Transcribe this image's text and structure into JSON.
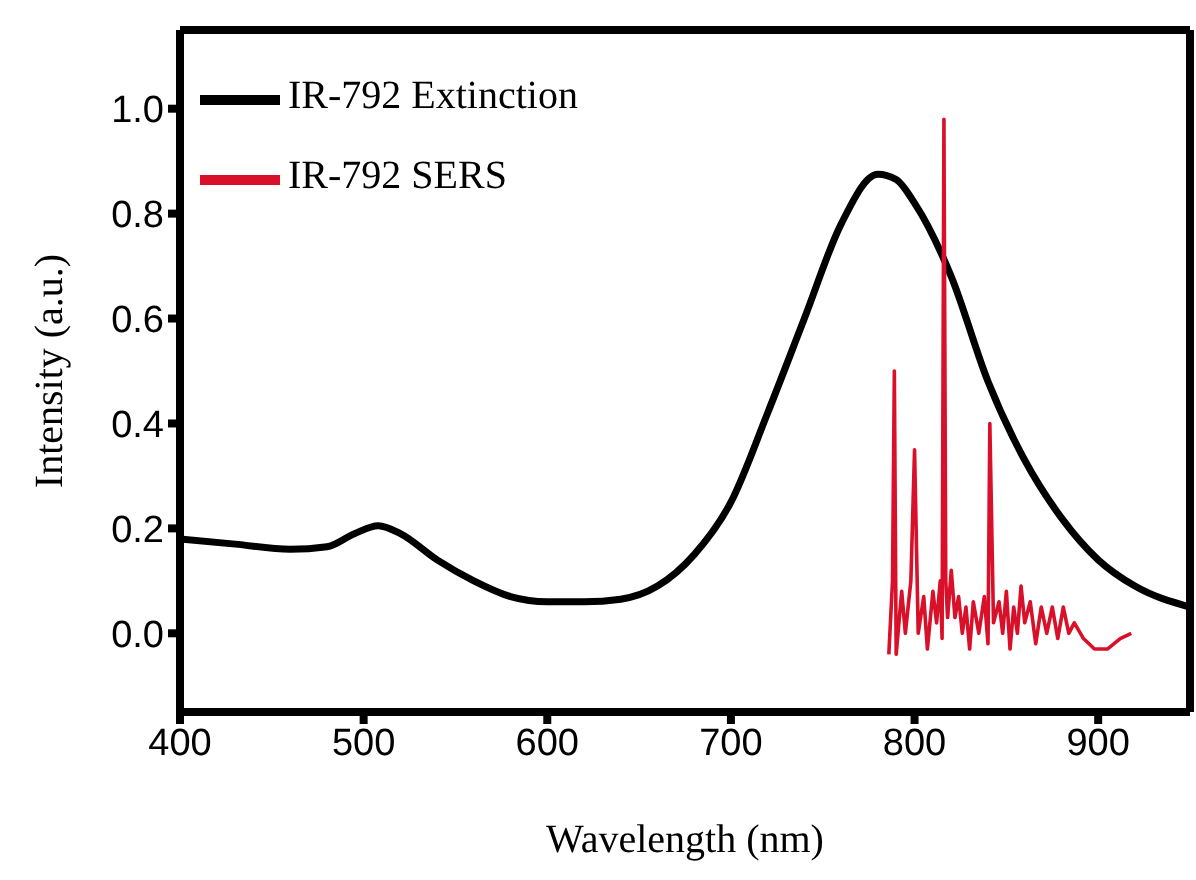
{
  "chart_data": {
    "type": "line",
    "xlabel": "Wavelength (nm)",
    "ylabel": "Intensity (a.u.)",
    "xlim": [
      400,
      950
    ],
    "xticks": [
      400,
      500,
      600,
      700,
      800,
      900
    ],
    "ylim": [
      -0.15,
      1.15
    ],
    "yticks": [
      {
        "value": 0,
        "label": "0.0"
      },
      0.2,
      0.4,
      0.6,
      0.8,
      {
        "value": 1,
        "label": "1.0"
      }
    ],
    "legend": "top left",
    "series": [
      {
        "name": "IR-792 Extinction",
        "color": "#000000",
        "x": [
          400,
          430,
          460,
          480,
          495,
          508,
          520,
          540,
          560,
          580,
          600,
          620,
          640,
          660,
          680,
          700,
          720,
          740,
          760,
          780,
          790,
          800,
          820,
          840,
          860,
          880,
          900,
          920,
          950
        ],
        "values": [
          0.18,
          0.17,
          0.16,
          0.165,
          0.19,
          0.205,
          0.19,
          0.14,
          0.1,
          0.07,
          0.06,
          0.06,
          0.065,
          0.09,
          0.15,
          0.25,
          0.42,
          0.6,
          0.78,
          0.875,
          0.865,
          0.82,
          0.68,
          0.48,
          0.33,
          0.22,
          0.14,
          0.09,
          0.05
        ]
      },
      {
        "name": "IR-792 SERS",
        "color": "#d9102a",
        "x": [
          786,
          788,
          789,
          790,
          793,
          795,
          798,
          800,
          802,
          805,
          807,
          810,
          812,
          814,
          815,
          816,
          817,
          818,
          820,
          822,
          824,
          826,
          828,
          830,
          832,
          835,
          838,
          840,
          841,
          843,
          846,
          848,
          850,
          852,
          854,
          856,
          858,
          860,
          863,
          866,
          869,
          872,
          875,
          878,
          881,
          884,
          887,
          892,
          898,
          905,
          912,
          918
        ],
        "values": [
          -0.04,
          0.1,
          0.5,
          -0.04,
          0.08,
          0.0,
          0.1,
          0.35,
          0.0,
          0.07,
          -0.03,
          0.08,
          0.02,
          0.1,
          -0.01,
          0.98,
          0.1,
          0.03,
          0.12,
          0.03,
          0.07,
          0.0,
          0.05,
          -0.03,
          0.06,
          0.0,
          0.07,
          -0.02,
          0.4,
          0.02,
          0.06,
          0.0,
          0.08,
          -0.03,
          0.05,
          0.0,
          0.09,
          0.02,
          0.06,
          -0.02,
          0.05,
          0.0,
          0.05,
          -0.01,
          0.05,
          0.0,
          0.02,
          -0.01,
          -0.03,
          -0.03,
          -0.01,
          0.0
        ]
      }
    ]
  }
}
